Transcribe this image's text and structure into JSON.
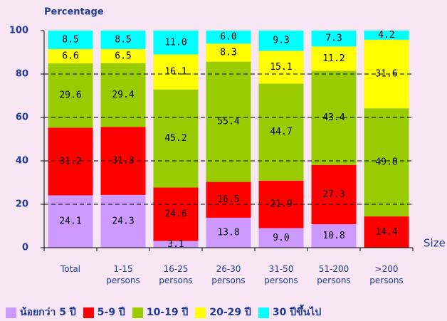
{
  "chart_data": {
    "type": "stacked_bar",
    "ylabel": "Percentage",
    "xlabel": "Size",
    "categories": [
      "Total",
      "1-15 persons",
      "16-25 persons",
      "26-30 persons",
      "31-50 persons",
      "51-200 persons",
      ">200 persons"
    ],
    "series": [
      {
        "name": "น้อยกว่า 5 ปี",
        "color": "#cc99ff",
        "values": [
          24.1,
          24.3,
          3.1,
          13.8,
          9.0,
          10.8,
          null
        ],
        "value_labels": [
          "24.1",
          "24.3",
          "3.1",
          "13.8",
          "9.0",
          "10.8",
          null
        ]
      },
      {
        "name": "5-9 ปี",
        "color": "#ff0000",
        "values": [
          31.2,
          31.3,
          24.6,
          16.5,
          21.9,
          27.3,
          14.4
        ],
        "value_labels": [
          "31.2",
          "31.3",
          "24.6",
          "16.5",
          "21.9",
          "27.3",
          "14.4"
        ]
      },
      {
        "name": "10-19 ปี",
        "color": "#99cc00",
        "values": [
          29.6,
          29.4,
          45.2,
          55.4,
          44.7,
          43.4,
          49.8
        ],
        "value_labels": [
          "29.6",
          "29.4",
          "45.2",
          "55.4",
          "44.7",
          "43.4",
          "49.8"
        ]
      },
      {
        "name": "20-29 ปี",
        "color": "#ffff00",
        "values": [
          6.6,
          6.5,
          16.1,
          8.3,
          15.1,
          11.2,
          31.6
        ],
        "value_labels": [
          "6.6",
          "6.5",
          "16.1",
          "8.3",
          "15.1",
          "11.2",
          "31.6"
        ]
      },
      {
        "name": "30 ปีขึ้นไป",
        "color": "#00ffff",
        "values": [
          8.5,
          8.5,
          11.0,
          6.0,
          9.3,
          7.3,
          4.2
        ],
        "value_labels": [
          "8.5",
          "8.5",
          "11.0",
          "6.0",
          "9.3",
          "7.3",
          "4.2"
        ]
      }
    ],
    "ylim": [
      0,
      100
    ],
    "yticks": [
      0,
      20,
      40,
      60,
      80,
      100
    ],
    "grid": true
  }
}
